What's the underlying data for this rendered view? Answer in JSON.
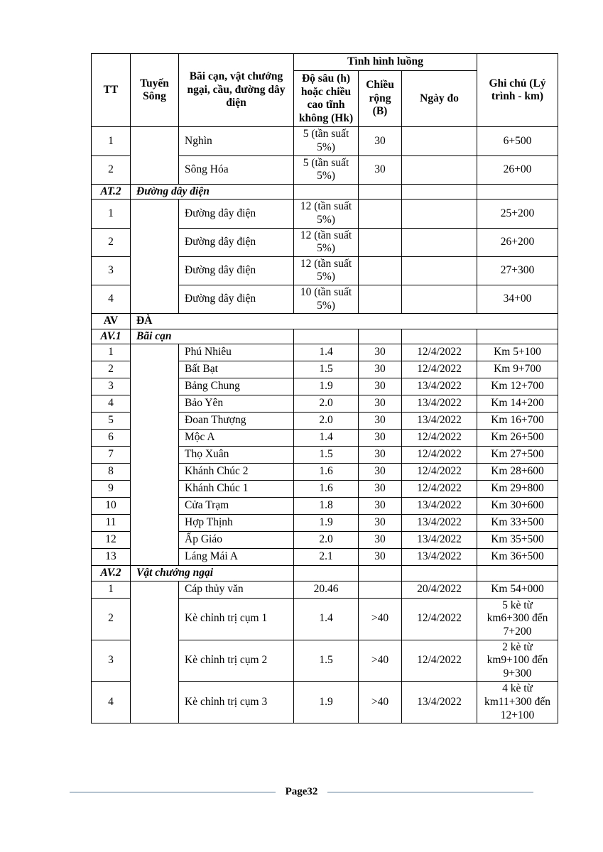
{
  "colors": {
    "table_border": "#000000",
    "footer_line": "#b5c3d1"
  },
  "footer": {
    "label": "Page32"
  },
  "table": {
    "header": {
      "tt": "TT",
      "tuyen_song": "Tuyến Sông",
      "bai_can": "Bãi cạn, vật chướng ngại, cầu, đường dây điện",
      "tinh_hinh_luong": "Tình hình luồng",
      "do_sau": "Độ sâu (h) hoặc chiều cao tĩnh không (Hk)",
      "chieu_rong": "Chiều rộng (B)",
      "ngay_do": "Ngày đo",
      "ghi_chu": "Ghi chú (Lý trình - km)"
    },
    "rows": [
      {
        "kind": "data",
        "tt": "1",
        "name": "Nghìn",
        "depth": "5 (tần suất 5%)",
        "width": "30",
        "date": "",
        "note": "6+500",
        "river_rowspan": 2
      },
      {
        "kind": "data",
        "tt": "2",
        "name": "Sông Hóa",
        "depth": "5 (tần suất 5%)",
        "width": "30",
        "date": "",
        "note": "26+00"
      },
      {
        "kind": "section",
        "tt": "AT.2",
        "label": "Đường dây điện"
      },
      {
        "kind": "data",
        "tt": "1",
        "name": "Đường dây điện",
        "depth": "12 (tần suất 5%)",
        "width": "",
        "date": "",
        "note": "25+200",
        "river_rowspan": 4
      },
      {
        "kind": "data",
        "tt": "2",
        "name": "Đường dây điện",
        "depth": "12 (tần suất 5%)",
        "width": "",
        "date": "",
        "note": "26+200"
      },
      {
        "kind": "data",
        "tt": "3",
        "name": "Đường dây điện",
        "depth": "12 (tần suất 5%)",
        "width": "",
        "date": "",
        "note": "27+300"
      },
      {
        "kind": "data",
        "tt": "4",
        "name": "Đường dây điện",
        "depth": "10 (tần suất 5%)",
        "width": "",
        "date": "",
        "note": "34+00"
      },
      {
        "kind": "section_full",
        "tt": "AV",
        "label": "ĐÀ"
      },
      {
        "kind": "section",
        "tt": "AV.1",
        "label": "Bãi cạn"
      },
      {
        "kind": "data",
        "tt": "1",
        "name": "Phú Nhiêu",
        "depth": "1.4",
        "width": "30",
        "date": "12/4/2022",
        "note": "Km 5+100",
        "river_rowspan": 13
      },
      {
        "kind": "data",
        "tt": "2",
        "name": "Bất Bạt",
        "depth": "1.5",
        "width": "30",
        "date": "12/4/2022",
        "note": "Km 9+700"
      },
      {
        "kind": "data",
        "tt": "3",
        "name": "Bảng Chung",
        "depth": "1.9",
        "width": "30",
        "date": "13/4/2022",
        "note": "Km 12+700"
      },
      {
        "kind": "data",
        "tt": "4",
        "name": "Bảo Yên",
        "depth": "2.0",
        "width": "30",
        "date": "13/4/2022",
        "note": "Km 14+200"
      },
      {
        "kind": "data",
        "tt": "5",
        "name": "Đoan Thượng",
        "depth": "2.0",
        "width": "30",
        "date": "13/4/2022",
        "note": "Km 16+700"
      },
      {
        "kind": "data",
        "tt": "6",
        "name": "Mộc A",
        "depth": "1.4",
        "width": "30",
        "date": "12/4/2022",
        "note": "Km 26+500"
      },
      {
        "kind": "data",
        "tt": "7",
        "name": "Thọ Xuân",
        "depth": "1.5",
        "width": "30",
        "date": "12/4/2022",
        "note": "Km 27+500"
      },
      {
        "kind": "data",
        "tt": "8",
        "name": "Khánh Chúc 2",
        "depth": "1.6",
        "width": "30",
        "date": "12/4/2022",
        "note": "Km 28+600"
      },
      {
        "kind": "data",
        "tt": "9",
        "name": "Khánh Chúc 1",
        "depth": "1.6",
        "width": "30",
        "date": "12/4/2022",
        "note": "Km 29+800"
      },
      {
        "kind": "data",
        "tt": "10",
        "name": "Cửa Trạm",
        "depth": "1.8",
        "width": "30",
        "date": "13/4/2022",
        "note": "Km 30+600"
      },
      {
        "kind": "data",
        "tt": "11",
        "name": "Hợp Thịnh",
        "depth": "1.9",
        "width": "30",
        "date": "13/4/2022",
        "note": "Km 33+500"
      },
      {
        "kind": "data",
        "tt": "12",
        "name": "Ấp Giáo",
        "depth": "2.0",
        "width": "30",
        "date": "13/4/2022",
        "note": "Km 35+500"
      },
      {
        "kind": "data",
        "tt": "13",
        "name": "Láng Mái A",
        "depth": "2.1",
        "width": "30",
        "date": "13/4/2022",
        "note": "Km 36+500"
      },
      {
        "kind": "section",
        "tt": "AV.2",
        "label": "Vật chướng ngại"
      },
      {
        "kind": "data",
        "tt": "1",
        "name": "Cáp thủy văn",
        "depth": "20.46",
        "width": "",
        "date": "20/4/2022",
        "note": "Km 54+000",
        "river_rowspan": 4
      },
      {
        "kind": "data",
        "tt": "2",
        "name": "Kè chỉnh trị cụm 1",
        "depth": "1.4",
        "width": ">40",
        "date": "12/4/2022",
        "note": "5 kè từ km6+300 đến 7+200"
      },
      {
        "kind": "data",
        "tt": "3",
        "name": "Kè chỉnh trị cụm 2",
        "depth": "1.5",
        "width": ">40",
        "date": "12/4/2022",
        "note": "2 kè từ km9+100 đến 9+300"
      },
      {
        "kind": "data",
        "tt": "4",
        "name": "Kè chỉnh trị cụm 3",
        "depth": "1.9",
        "width": ">40",
        "date": "13/4/2022",
        "note": "4 kè từ km11+300 đến 12+100"
      }
    ]
  }
}
